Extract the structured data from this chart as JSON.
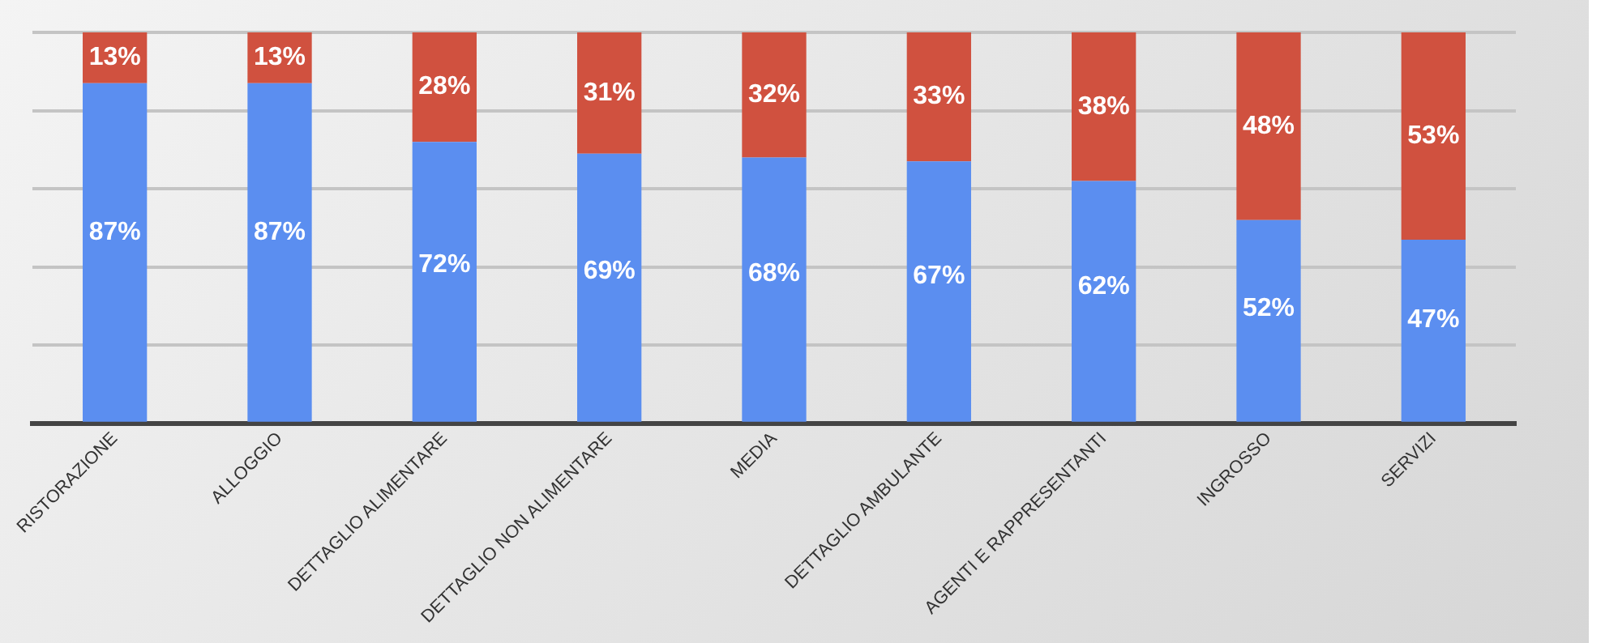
{
  "chart_data": {
    "type": "bar",
    "stacked": true,
    "categories": [
      "RISTORAZIONE",
      "ALLOGGIO",
      "DETTAGLIO ALIMENTARE",
      "DETTAGLIO NON ALIMENTARE",
      "MEDIA",
      "DETTAGLIO AMBULANTE",
      "AGENTI E RAPPRESENTANTI",
      "INGROSSO",
      "SERVIZI"
    ],
    "series": [
      {
        "color": "#5b8ef0",
        "values": [
          87,
          87,
          72,
          69,
          68,
          67,
          62,
          52,
          47
        ],
        "value_labels": [
          "87%",
          "87%",
          "72%",
          "69%",
          "68%",
          "67%",
          "62%",
          "52%",
          "47%"
        ]
      },
      {
        "color": "#d0513f",
        "values": [
          13,
          13,
          28,
          31,
          32,
          33,
          38,
          48,
          53
        ],
        "value_labels": [
          "13%",
          "13%",
          "28%",
          "31%",
          "32%",
          "33%",
          "38%",
          "48%",
          "53%"
        ]
      }
    ],
    "ylim": [
      0,
      100
    ],
    "yticks": [
      {
        "value": 0,
        "label": null
      },
      {
        "value": 20,
        "label": null
      },
      {
        "value": 40,
        "label": null
      },
      {
        "value": 60,
        "label": null
      },
      {
        "value": 80,
        "label": null
      },
      {
        "value": 100,
        "label": null
      }
    ],
    "grid": "y",
    "legend": false,
    "tick_labels": "x"
  }
}
